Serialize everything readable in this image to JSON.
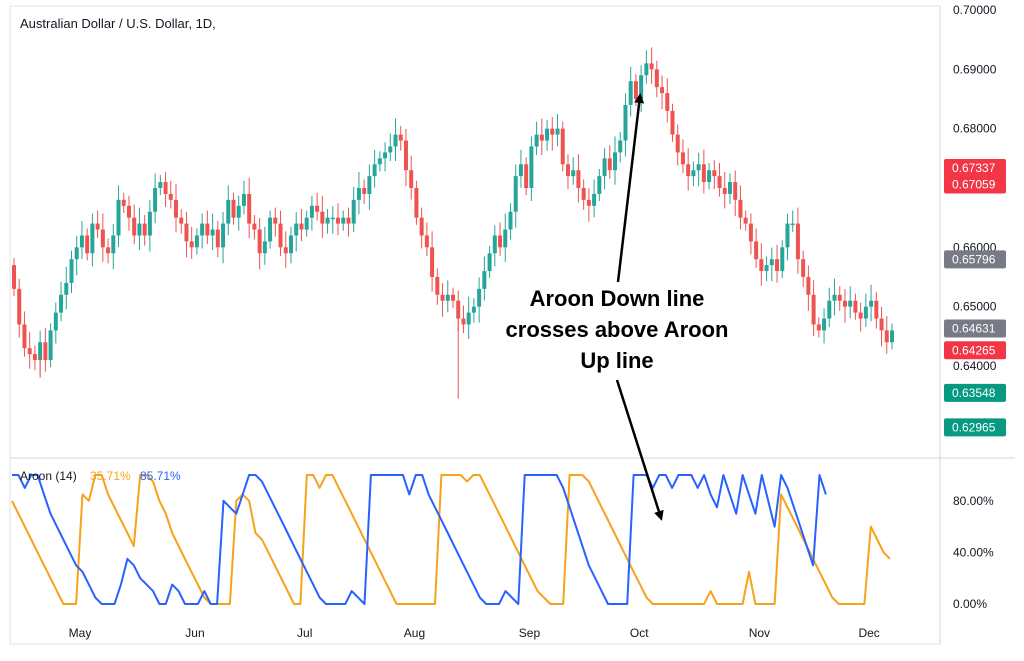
{
  "chart_data": [
    {
      "type": "candlestick",
      "title": "Australian Dollar / U.S. Dollar, 1D,",
      "ylim": [
        0.625,
        0.7
      ],
      "y_ticks": [
        "0.70000",
        "0.69000",
        "0.68000",
        "0.66000",
        "0.65000",
        "0.64000"
      ],
      "y_tick_values": [
        0.7,
        0.69,
        0.68,
        0.66,
        0.65,
        0.64
      ],
      "x_ticks": [
        "May",
        "Jun",
        "Jul",
        "Aug",
        "Sep",
        "Oct",
        "Nov",
        "Dec"
      ],
      "x_tick_positions": [
        0,
        22,
        43,
        64,
        86,
        107,
        130,
        151
      ],
      "up_color": "#26a69a",
      "down_color": "#ef5350",
      "price_badges": [
        {
          "label": "0.67337",
          "value": 0.67337,
          "color": "#f23645"
        },
        {
          "label": "0.67059",
          "value": 0.67059,
          "color": "#f23645"
        },
        {
          "label": "0.65796",
          "value": 0.65796,
          "color": "#787b86"
        },
        {
          "label": "0.64631",
          "value": 0.64631,
          "color": "#787b86"
        },
        {
          "label": "0.64265",
          "value": 0.64265,
          "color": "#f23645"
        },
        {
          "label": "0.63548",
          "value": 0.63548,
          "color": "#089981"
        },
        {
          "label": "0.62965",
          "value": 0.62965,
          "color": "#089981"
        }
      ],
      "close": [
        0.653,
        0.647,
        0.643,
        0.642,
        0.641,
        0.644,
        0.641,
        0.646,
        0.649,
        0.652,
        0.654,
        0.658,
        0.66,
        0.662,
        0.659,
        0.664,
        0.663,
        0.66,
        0.659,
        0.662,
        0.668,
        0.667,
        0.665,
        0.662,
        0.664,
        0.662,
        0.666,
        0.67,
        0.671,
        0.669,
        0.668,
        0.665,
        0.664,
        0.661,
        0.66,
        0.662,
        0.664,
        0.662,
        0.663,
        0.66,
        0.664,
        0.668,
        0.665,
        0.667,
        0.669,
        0.664,
        0.663,
        0.659,
        0.661,
        0.665,
        0.664,
        0.66,
        0.659,
        0.662,
        0.664,
        0.663,
        0.665,
        0.667,
        0.666,
        0.664,
        0.665,
        0.665,
        0.664,
        0.665,
        0.664,
        0.668,
        0.67,
        0.669,
        0.672,
        0.674,
        0.675,
        0.676,
        0.677,
        0.679,
        0.678,
        0.673,
        0.67,
        0.665,
        0.662,
        0.66,
        0.655,
        0.652,
        0.651,
        0.652,
        0.651,
        0.648,
        0.647,
        0.649,
        0.65,
        0.653,
        0.656,
        0.659,
        0.662,
        0.66,
        0.663,
        0.666,
        0.672,
        0.674,
        0.67,
        0.677,
        0.679,
        0.678,
        0.68,
        0.679,
        0.68,
        0.674,
        0.672,
        0.673,
        0.67,
        0.668,
        0.667,
        0.669,
        0.672,
        0.675,
        0.673,
        0.676,
        0.678,
        0.684,
        0.688,
        0.685,
        0.689,
        0.691,
        0.69,
        0.687,
        0.686,
        0.683,
        0.679,
        0.676,
        0.674,
        0.672,
        0.673,
        0.674,
        0.671,
        0.673,
        0.672,
        0.67,
        0.669,
        0.671,
        0.668,
        0.665,
        0.664,
        0.661,
        0.658,
        0.656,
        0.657,
        0.658,
        0.656,
        0.66,
        0.664,
        0.664,
        0.658,
        0.655,
        0.652,
        0.647,
        0.646,
        0.648,
        0.651,
        0.652,
        0.651,
        0.65,
        0.651,
        0.649,
        0.648,
        0.65,
        0.651,
        0.648,
        0.646,
        0.644,
        0.646
      ],
      "highlight_candle": {
        "index": 151,
        "open": 0.655,
        "high": 0.669,
        "low": 0.653,
        "close": 0.667,
        "color": "#ef5350"
      }
    },
    {
      "type": "line",
      "title": "Aroon (14)",
      "ylim": [
        0,
        100
      ],
      "y_ticks": [
        "80.00%",
        "40.00%",
        "0.00%"
      ],
      "y_tick_values": [
        80,
        40,
        0
      ],
      "series": [
        {
          "name": "",
          "color": "#f7a21b",
          "value_label": "35.71%"
        },
        {
          "name": "",
          "color": "#2962ff",
          "value_label": "85.71%"
        }
      ],
      "up_points": [
        [
          0,
          100
        ],
        [
          1,
          100
        ],
        [
          2,
          90
        ],
        [
          3,
          100
        ],
        [
          4,
          100
        ],
        [
          5,
          85
        ],
        [
          6,
          70
        ],
        [
          7,
          60
        ],
        [
          8,
          50
        ],
        [
          9,
          40
        ],
        [
          10,
          30
        ],
        [
          11,
          25
        ],
        [
          12,
          15
        ],
        [
          13,
          5
        ],
        [
          14,
          0
        ],
        [
          15,
          0
        ],
        [
          16,
          0
        ],
        [
          17,
          15
        ],
        [
          18,
          35
        ],
        [
          19,
          30
        ],
        [
          20,
          20
        ],
        [
          21,
          15
        ],
        [
          22,
          10
        ],
        [
          23,
          0
        ],
        [
          24,
          0
        ],
        [
          25,
          15
        ],
        [
          26,
          10
        ],
        [
          27,
          0
        ],
        [
          28,
          0
        ],
        [
          29,
          0
        ],
        [
          30,
          10
        ],
        [
          31,
          0
        ],
        [
          32,
          0
        ],
        [
          33,
          80
        ],
        [
          34,
          75
        ],
        [
          35,
          70
        ],
        [
          36,
          85
        ],
        [
          37,
          100
        ],
        [
          38,
          100
        ],
        [
          39,
          95
        ],
        [
          40,
          85
        ],
        [
          41,
          75
        ],
        [
          42,
          65
        ],
        [
          43,
          55
        ],
        [
          44,
          45
        ],
        [
          45,
          35
        ],
        [
          46,
          25
        ],
        [
          47,
          15
        ],
        [
          48,
          5
        ],
        [
          49,
          0
        ],
        [
          50,
          0
        ],
        [
          51,
          0
        ],
        [
          52,
          0
        ],
        [
          53,
          10
        ],
        [
          54,
          5
        ],
        [
          55,
          0
        ],
        [
          56,
          100
        ],
        [
          57,
          100
        ],
        [
          58,
          100
        ],
        [
          59,
          100
        ],
        [
          60,
          100
        ],
        [
          61,
          100
        ],
        [
          62,
          85
        ],
        [
          63,
          100
        ],
        [
          64,
          100
        ],
        [
          65,
          85
        ],
        [
          66,
          75
        ],
        [
          67,
          65
        ],
        [
          68,
          55
        ],
        [
          69,
          45
        ],
        [
          70,
          35
        ],
        [
          71,
          25
        ],
        [
          72,
          15
        ],
        [
          73,
          5
        ],
        [
          74,
          0
        ],
        [
          75,
          0
        ],
        [
          76,
          0
        ],
        [
          77,
          10
        ],
        [
          78,
          5
        ],
        [
          79,
          0
        ],
        [
          80,
          100
        ],
        [
          81,
          100
        ],
        [
          82,
          100
        ],
        [
          83,
          100
        ],
        [
          84,
          100
        ],
        [
          85,
          100
        ],
        [
          86,
          90
        ],
        [
          87,
          75
        ],
        [
          88,
          60
        ],
        [
          89,
          45
        ],
        [
          90,
          30
        ],
        [
          91,
          20
        ],
        [
          92,
          10
        ],
        [
          93,
          0
        ],
        [
          94,
          0
        ],
        [
          95,
          0
        ],
        [
          96,
          0
        ],
        [
          97,
          100
        ],
        [
          98,
          100
        ],
        [
          99,
          100
        ],
        [
          100,
          90
        ],
        [
          101,
          100
        ],
        [
          102,
          100
        ],
        [
          103,
          90
        ],
        [
          104,
          100
        ],
        [
          105,
          100
        ],
        [
          106,
          100
        ],
        [
          107,
          90
        ],
        [
          108,
          100
        ],
        [
          109,
          85
        ],
        [
          110,
          75
        ],
        [
          111,
          100
        ],
        [
          112,
          85
        ],
        [
          113,
          70
        ],
        [
          114,
          100
        ],
        [
          115,
          85
        ],
        [
          116,
          70
        ],
        [
          117,
          100
        ],
        [
          118,
          80
        ],
        [
          119,
          60
        ],
        [
          120,
          100
        ],
        [
          121,
          90
        ],
        [
          122,
          75
        ],
        [
          123,
          60
        ],
        [
          124,
          45
        ],
        [
          125,
          30
        ],
        [
          126,
          100
        ],
        [
          127,
          85
        ]
      ],
      "down_points": [
        [
          0,
          80
        ],
        [
          1,
          70
        ],
        [
          2,
          60
        ],
        [
          3,
          50
        ],
        [
          4,
          40
        ],
        [
          5,
          30
        ],
        [
          6,
          20
        ],
        [
          7,
          10
        ],
        [
          8,
          0
        ],
        [
          9,
          0
        ],
        [
          10,
          0
        ],
        [
          11,
          85
        ],
        [
          12,
          80
        ],
        [
          13,
          100
        ],
        [
          14,
          100
        ],
        [
          15,
          85
        ],
        [
          16,
          75
        ],
        [
          17,
          65
        ],
        [
          18,
          55
        ],
        [
          19,
          45
        ],
        [
          20,
          100
        ],
        [
          21,
          100
        ],
        [
          22,
          95
        ],
        [
          23,
          80
        ],
        [
          24,
          70
        ],
        [
          25,
          55
        ],
        [
          26,
          45
        ],
        [
          27,
          35
        ],
        [
          28,
          25
        ],
        [
          29,
          15
        ],
        [
          30,
          5
        ],
        [
          31,
          0
        ],
        [
          32,
          0
        ],
        [
          33,
          0
        ],
        [
          34,
          0
        ],
        [
          35,
          80
        ],
        [
          36,
          85
        ],
        [
          37,
          80
        ],
        [
          38,
          55
        ],
        [
          39,
          50
        ],
        [
          40,
          40
        ],
        [
          41,
          30
        ],
        [
          42,
          20
        ],
        [
          43,
          10
        ],
        [
          44,
          0
        ],
        [
          45,
          0
        ],
        [
          46,
          100
        ],
        [
          47,
          100
        ],
        [
          48,
          90
        ],
        [
          49,
          100
        ],
        [
          50,
          100
        ],
        [
          51,
          90
        ],
        [
          52,
          80
        ],
        [
          53,
          70
        ],
        [
          54,
          60
        ],
        [
          55,
          50
        ],
        [
          56,
          40
        ],
        [
          57,
          30
        ],
        [
          58,
          20
        ],
        [
          59,
          10
        ],
        [
          60,
          0
        ],
        [
          61,
          0
        ],
        [
          62,
          0
        ],
        [
          63,
          0
        ],
        [
          64,
          0
        ],
        [
          65,
          0
        ],
        [
          66,
          0
        ],
        [
          67,
          100
        ],
        [
          68,
          100
        ],
        [
          69,
          100
        ],
        [
          70,
          100
        ],
        [
          71,
          95
        ],
        [
          72,
          100
        ],
        [
          73,
          100
        ],
        [
          74,
          90
        ],
        [
          75,
          80
        ],
        [
          76,
          70
        ],
        [
          77,
          60
        ],
        [
          78,
          50
        ],
        [
          79,
          40
        ],
        [
          80,
          30
        ],
        [
          81,
          20
        ],
        [
          82,
          10
        ],
        [
          83,
          5
        ],
        [
          84,
          0
        ],
        [
          85,
          0
        ],
        [
          86,
          0
        ],
        [
          87,
          100
        ],
        [
          88,
          100
        ],
        [
          89,
          100
        ],
        [
          90,
          95
        ],
        [
          91,
          85
        ],
        [
          92,
          75
        ],
        [
          93,
          65
        ],
        [
          94,
          55
        ],
        [
          95,
          45
        ],
        [
          96,
          35
        ],
        [
          97,
          25
        ],
        [
          98,
          15
        ],
        [
          99,
          5
        ],
        [
          100,
          0
        ],
        [
          101,
          0
        ],
        [
          102,
          0
        ],
        [
          103,
          0
        ],
        [
          104,
          0
        ],
        [
          105,
          0
        ],
        [
          106,
          0
        ],
        [
          107,
          0
        ],
        [
          108,
          0
        ],
        [
          109,
          10
        ],
        [
          110,
          0
        ],
        [
          111,
          0
        ],
        [
          112,
          0
        ],
        [
          113,
          0
        ],
        [
          114,
          0
        ],
        [
          115,
          25
        ],
        [
          116,
          0
        ],
        [
          117,
          0
        ],
        [
          118,
          0
        ],
        [
          119,
          0
        ],
        [
          120,
          85
        ],
        [
          121,
          75
        ],
        [
          122,
          65
        ],
        [
          123,
          55
        ],
        [
          124,
          45
        ],
        [
          125,
          35
        ],
        [
          126,
          25
        ],
        [
          127,
          15
        ],
        [
          128,
          5
        ],
        [
          129,
          0
        ],
        [
          130,
          0
        ],
        [
          131,
          0
        ],
        [
          132,
          0
        ],
        [
          133,
          0
        ],
        [
          134,
          60
        ],
        [
          135,
          50
        ],
        [
          136,
          40
        ],
        [
          137,
          35
        ]
      ],
      "x_ticks": [
        "May",
        "Jun",
        "Jul",
        "Aug",
        "Sep",
        "Oct",
        "Nov",
        "Dec"
      ]
    }
  ],
  "annotation": {
    "lines": [
      "Aroon Down line",
      "crosses above Aroon",
      "Up line"
    ]
  }
}
